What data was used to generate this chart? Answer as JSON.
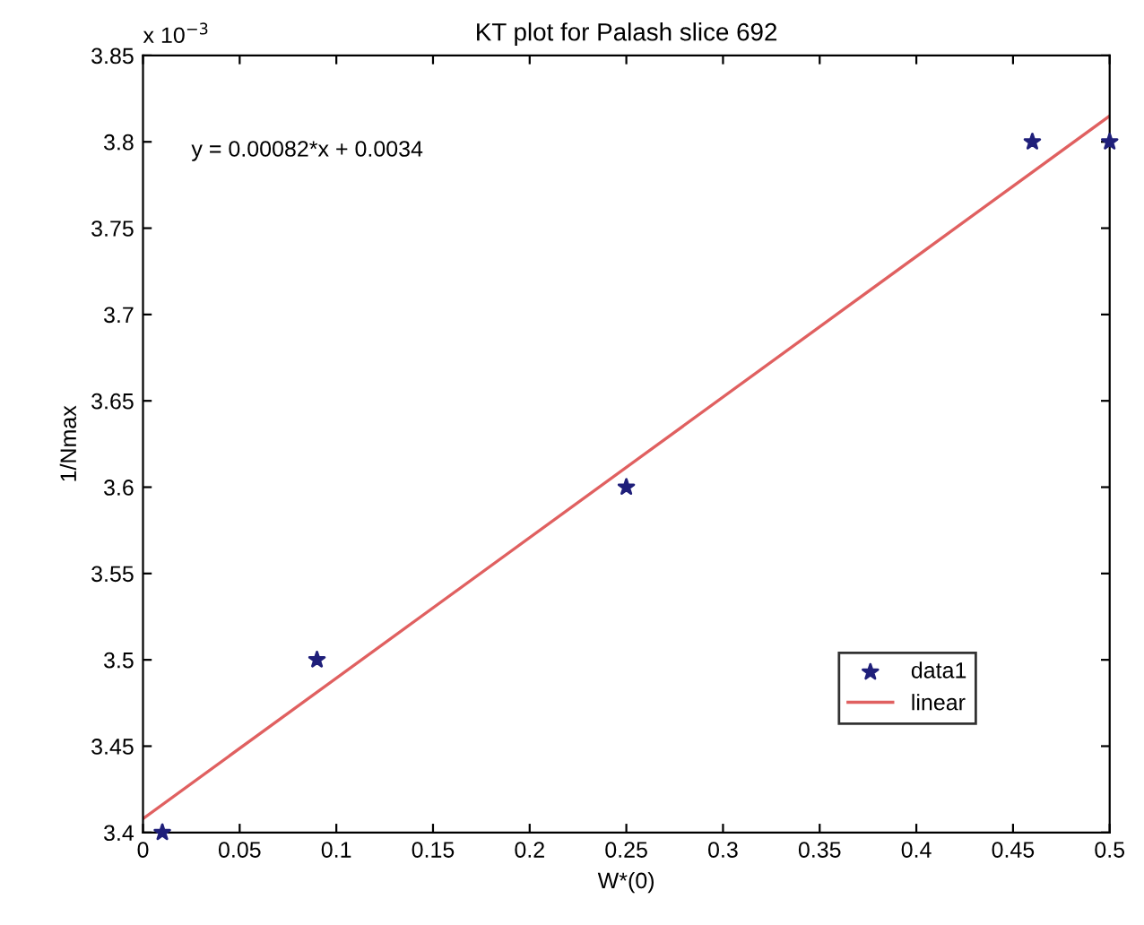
{
  "chart_data": {
    "type": "scatter",
    "title": "KT plot for Palash slice 692",
    "xlabel": "W*(0)",
    "ylabel": "1/Nmax",
    "annotations": [
      "y = 0.00082*x + 0.0034",
      "x 10$^{−3}$"
    ],
    "series": [
      {
        "name": "data1",
        "color": "#1f1f7a",
        "marker": "star",
        "x": [
          0.01,
          0.09,
          0.25,
          0.46,
          0.5
        ],
        "values": [
          3.4,
          3.5,
          3.6,
          3.8,
          3.8
        ]
      },
      {
        "name": "linear",
        "type": "line",
        "color": "#e06060",
        "marker": "none",
        "line_style": "solid",
        "x": [
          0,
          0.5
        ],
        "values": [
          3.408,
          3.815
        ]
      }
    ],
    "xlim": [
      0,
      0.5
    ],
    "ylim": [
      3.4,
      3.85
    ],
    "xticks": [
      0,
      0.05,
      0.1,
      0.15,
      0.2,
      0.25,
      0.3,
      0.35,
      0.4,
      0.45,
      0.5
    ],
    "yticks": [
      3.4,
      3.45,
      3.5,
      3.55,
      3.6,
      3.65,
      3.7,
      3.75,
      3.8,
      3.85
    ],
    "grid": false,
    "legend": "bottom right"
  }
}
